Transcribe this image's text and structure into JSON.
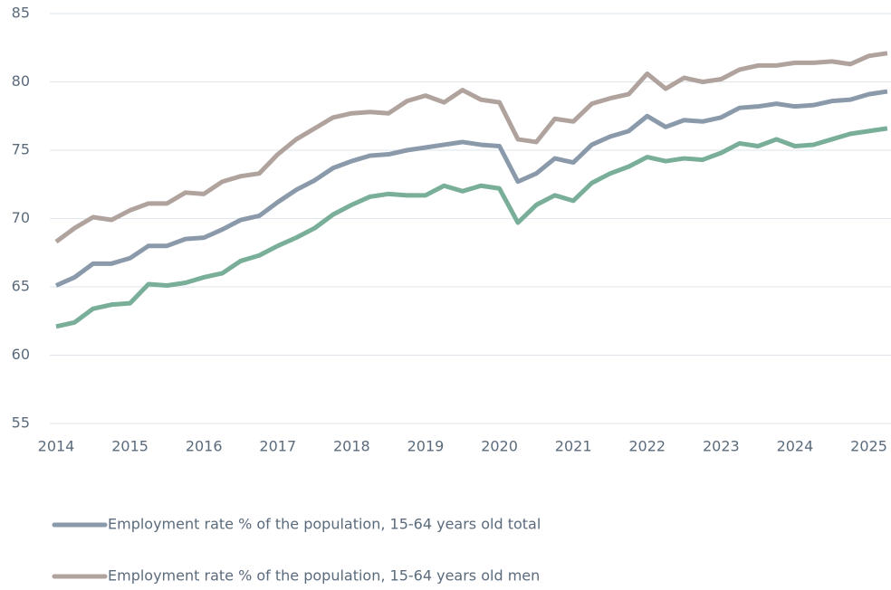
{
  "chart_data": {
    "type": "line",
    "x": [
      2014,
      2014.25,
      2014.5,
      2014.75,
      2015,
      2015.25,
      2015.5,
      2015.75,
      2016,
      2016.25,
      2016.5,
      2016.75,
      2017,
      2017.25,
      2017.5,
      2017.75,
      2018,
      2018.25,
      2018.5,
      2018.75,
      2019,
      2019.25,
      2019.5,
      2019.75,
      2020,
      2020.25,
      2020.5,
      2020.75,
      2021,
      2021.25,
      2021.5,
      2021.75,
      2022,
      2022.25,
      2022.5,
      2022.75,
      2023,
      2023.25,
      2023.5,
      2023.75,
      2024,
      2024.25,
      2024.5,
      2024.75,
      2025,
      2025.25
    ],
    "series": [
      {
        "name": "Employment rate % of the population, 15-64 years old total",
        "color": "#8a9aab",
        "values": [
          65.1,
          65.7,
          66.7,
          66.7,
          67.1,
          68.0,
          68.0,
          68.5,
          68.6,
          69.2,
          69.9,
          70.2,
          71.2,
          72.1,
          72.8,
          73.7,
          74.2,
          74.6,
          74.7,
          75.0,
          75.2,
          75.4,
          75.6,
          75.4,
          75.3,
          72.7,
          73.3,
          74.4,
          74.1,
          75.4,
          76.0,
          76.4,
          77.5,
          76.7,
          77.2,
          77.1,
          77.4,
          78.1,
          78.2,
          78.4,
          78.2,
          78.3,
          78.6,
          78.7,
          79.1,
          79.3
        ]
      },
      {
        "name": "Employment rate % of the population, 15-64 years old men",
        "color": "#b0a39e",
        "values": [
          68.3,
          69.3,
          70.1,
          69.9,
          70.6,
          71.1,
          71.1,
          71.9,
          71.8,
          72.7,
          73.1,
          73.3,
          74.7,
          75.8,
          76.6,
          77.4,
          77.7,
          77.8,
          77.7,
          78.6,
          79.0,
          78.5,
          79.4,
          78.7,
          78.5,
          75.8,
          75.6,
          77.3,
          77.1,
          78.4,
          78.8,
          79.1,
          80.6,
          79.5,
          80.3,
          80.0,
          80.2,
          80.9,
          81.2,
          81.2,
          81.4,
          81.4,
          81.5,
          81.3,
          81.9,
          82.1
        ]
      },
      {
        "color": "#79ae99",
        "values": [
          62.1,
          62.4,
          63.4,
          63.7,
          63.8,
          65.2,
          65.1,
          65.3,
          65.7,
          66.0,
          66.9,
          67.3,
          68.0,
          68.6,
          69.3,
          70.3,
          71.0,
          71.6,
          71.8,
          71.7,
          71.7,
          72.4,
          72.0,
          72.4,
          72.2,
          69.7,
          71.0,
          71.7,
          71.3,
          72.6,
          73.3,
          73.8,
          74.5,
          74.2,
          74.4,
          74.3,
          74.8,
          75.5,
          75.3,
          75.8,
          75.3,
          75.4,
          75.8,
          76.2,
          76.4,
          76.6
        ]
      }
    ],
    "xlim": [
      2014,
      2025.3
    ],
    "xticks": [
      2014,
      2015,
      2016,
      2017,
      2018,
      2019,
      2020,
      2021,
      2022,
      2023,
      2024,
      2025
    ],
    "ylim": [
      55,
      85
    ],
    "yticks": [
      55,
      60,
      65,
      70,
      75,
      80,
      85
    ],
    "grid": true
  }
}
